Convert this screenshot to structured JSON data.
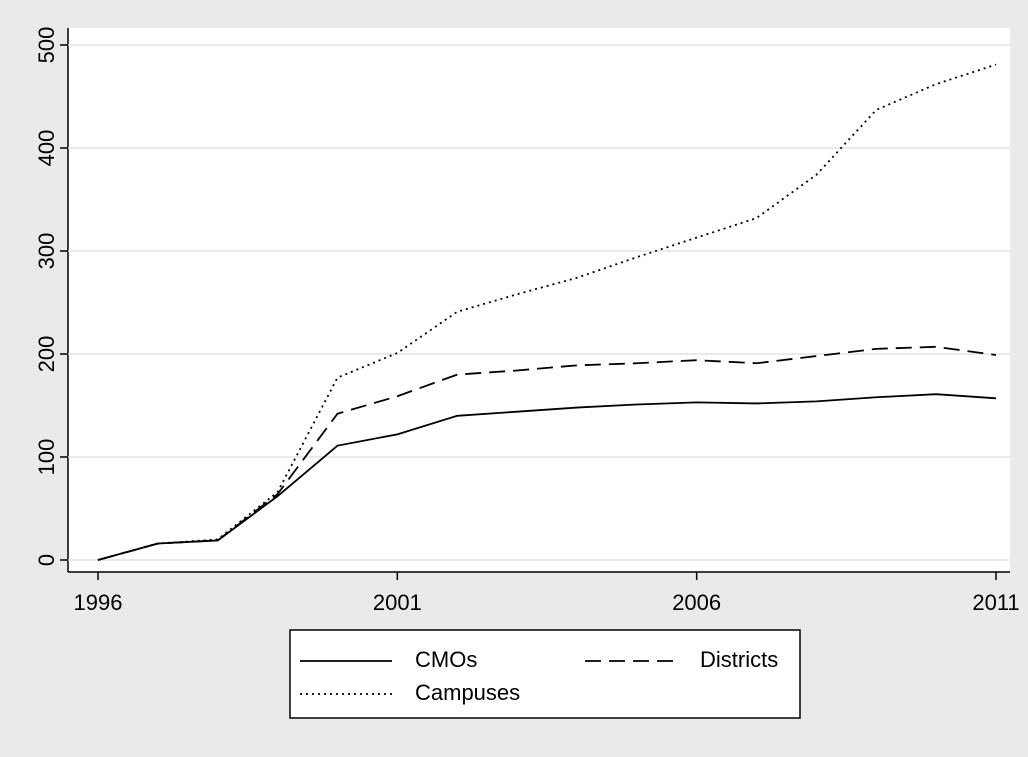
{
  "chart_data": {
    "type": "line",
    "x": [
      1996,
      1997,
      1998,
      1999,
      2000,
      2001,
      2002,
      2003,
      2004,
      2005,
      2006,
      2007,
      2008,
      2009,
      2010,
      2011
    ],
    "series": [
      {
        "name": "CMOs",
        "color": "#000000",
        "dash": "solid",
        "values": [
          0,
          16,
          19,
          62,
          111,
          122,
          140,
          144,
          148,
          151,
          153,
          152,
          154,
          158,
          161,
          157
        ]
      },
      {
        "name": "Districts",
        "color": "#000000",
        "dash": "dashed",
        "values": [
          0,
          16,
          19,
          64,
          142,
          159,
          180,
          184,
          189,
          191,
          194,
          191,
          198,
          205,
          207,
          199
        ]
      },
      {
        "name": "Campuses",
        "color": "#000000",
        "dash": "dotted",
        "values": [
          0,
          16,
          20,
          66,
          177,
          201,
          241,
          258,
          274,
          294,
          313,
          332,
          374,
          437,
          462,
          481
        ]
      }
    ],
    "xlim": [
      1996,
      2011
    ],
    "xticks": [
      1996,
      2001,
      2006,
      2011
    ],
    "ylim": [
      0,
      500
    ],
    "yticks": [
      0,
      100,
      200,
      300,
      400,
      500
    ],
    "grid": true,
    "legend": "bottom"
  }
}
